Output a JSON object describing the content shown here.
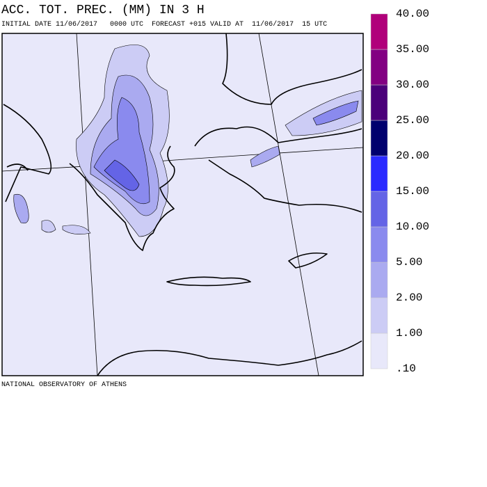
{
  "header": {
    "title": "ACC. TOT. PREC. (MM) IN 3 H",
    "subtitle": "INITIAL DATE 11/06/2017   0000 UTC  FORECAST +015 VALID AT  11/06/2017  15 UTC"
  },
  "footer": "NATIONAL OBSERVATORY OF ATHENS",
  "legend": {
    "levels": [
      {
        "value": 0.1,
        "label": ".10"
      },
      {
        "value": 1,
        "label": "1.00"
      },
      {
        "value": 2,
        "label": "2.00"
      },
      {
        "value": 5,
        "label": "5.00"
      },
      {
        "value": 10,
        "label": "10.00"
      },
      {
        "value": 15,
        "label": "15.00"
      },
      {
        "value": 20,
        "label": "20.00"
      },
      {
        "value": 25,
        "label": "25.00"
      },
      {
        "value": 30,
        "label": "30.00"
      },
      {
        "value": 35,
        "label": "35.00"
      },
      {
        "value": 40,
        "label": "40.00"
      }
    ],
    "colors": [
      "#e8e8fa",
      "#ccccf5",
      "#aaaaf0",
      "#8a8aee",
      "#6464e6",
      "#2a2aff",
      "#00006e",
      "#4b007a",
      "#820082",
      "#b0007a"
    ]
  }
}
